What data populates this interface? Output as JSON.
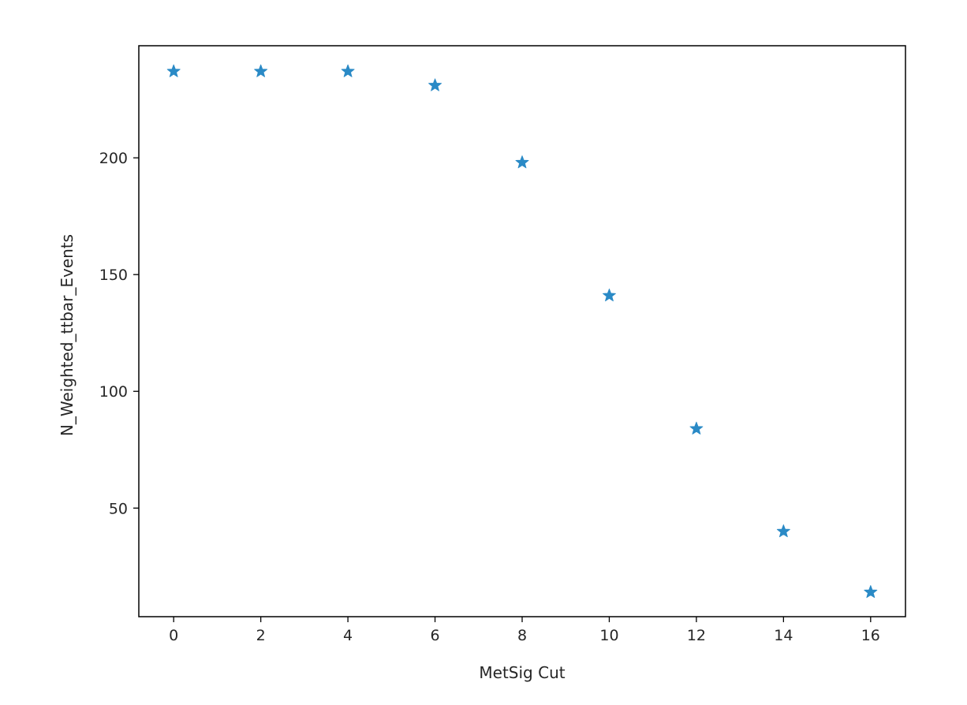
{
  "chart_data": {
    "type": "scatter",
    "title": "",
    "xlabel": "MetSig Cut",
    "ylabel": "N_Weighted_ttbar_Events",
    "x": [
      0,
      2,
      4,
      6,
      8,
      10,
      12,
      14,
      16
    ],
    "y": [
      237,
      237,
      237,
      231,
      198,
      141,
      84,
      40,
      14
    ],
    "xlim": [
      -0.8,
      16.8
    ],
    "ylim": [
      3.5,
      248
    ],
    "xticks": [
      0,
      2,
      4,
      6,
      8,
      10,
      12,
      14,
      16
    ],
    "yticks": [
      50,
      100,
      150,
      200
    ],
    "marker": "star",
    "color": "#2a8ac6",
    "grid": false,
    "legend": "none"
  }
}
